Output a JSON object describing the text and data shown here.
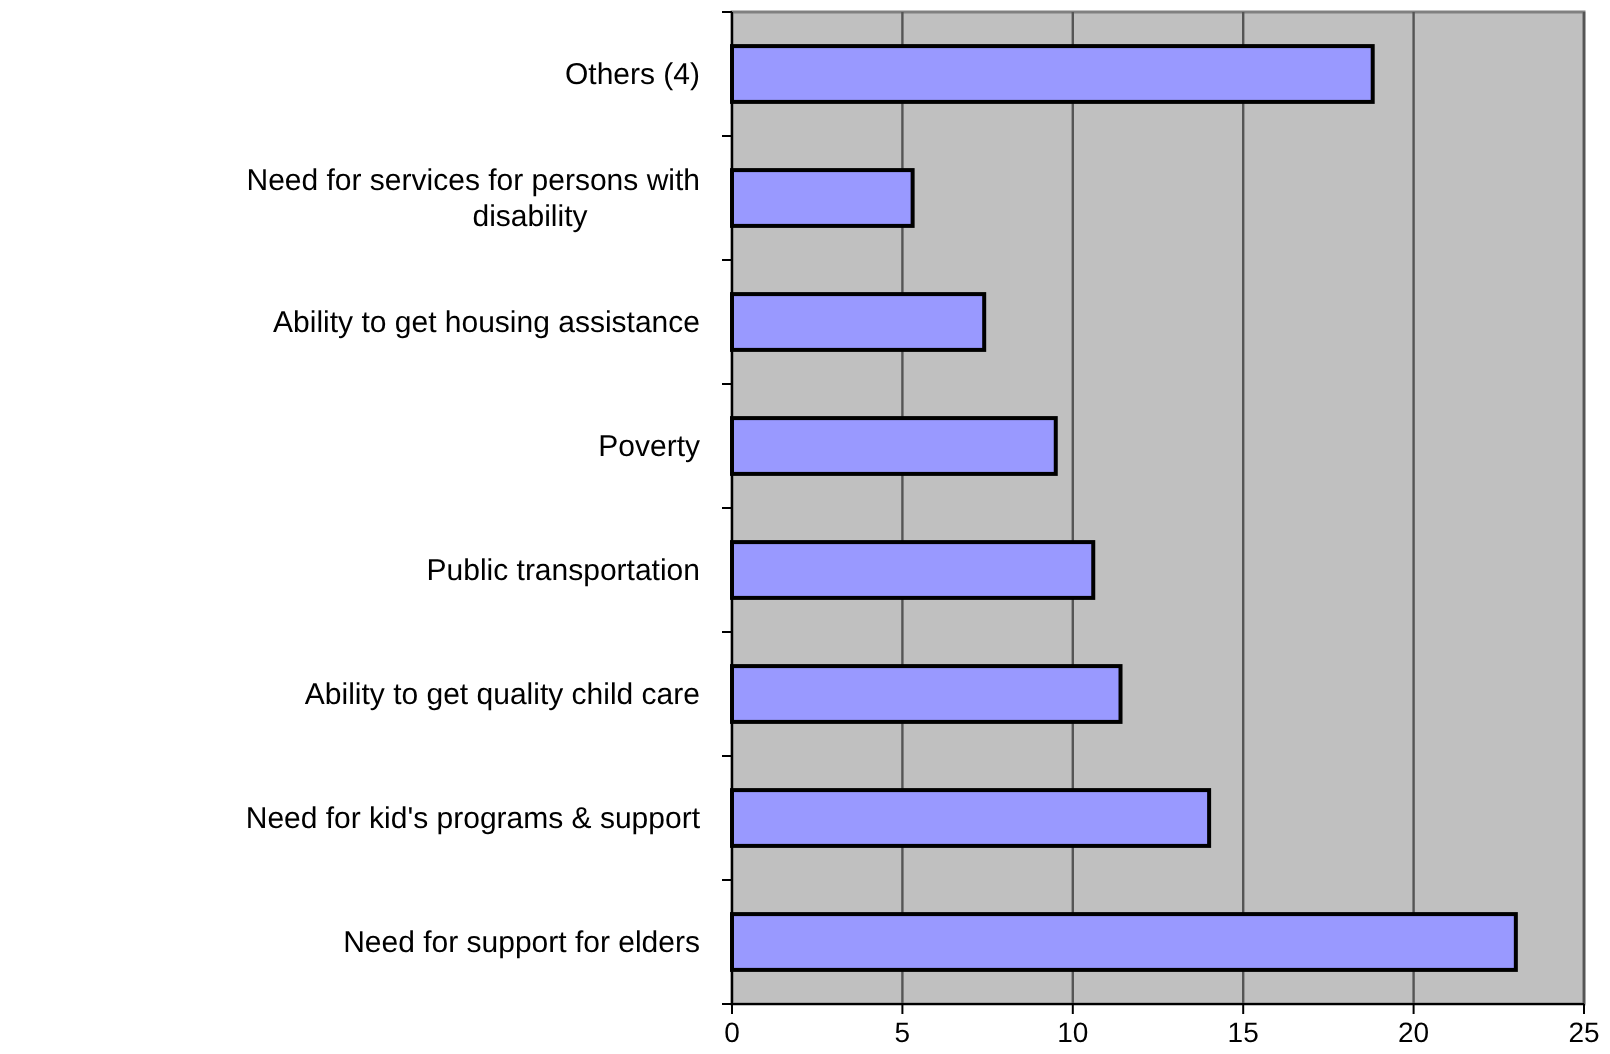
{
  "chart_data": {
    "type": "bar",
    "orientation": "horizontal",
    "categories": [
      "Others (4)",
      "Need for services for persons with disability",
      "Ability to get housing assistance",
      "Poverty",
      "Public transportation",
      "Ability to get quality child care",
      "Need for kid's programs & support",
      "Need for support for elders"
    ],
    "values": [
      18.8,
      5.3,
      7.4,
      9.5,
      10.6,
      11.4,
      14.0,
      23.0
    ],
    "color": "#9999ff",
    "xlim": [
      0,
      25
    ],
    "xticks": [
      0,
      5,
      10,
      15,
      20,
      25
    ],
    "grid": "x"
  }
}
